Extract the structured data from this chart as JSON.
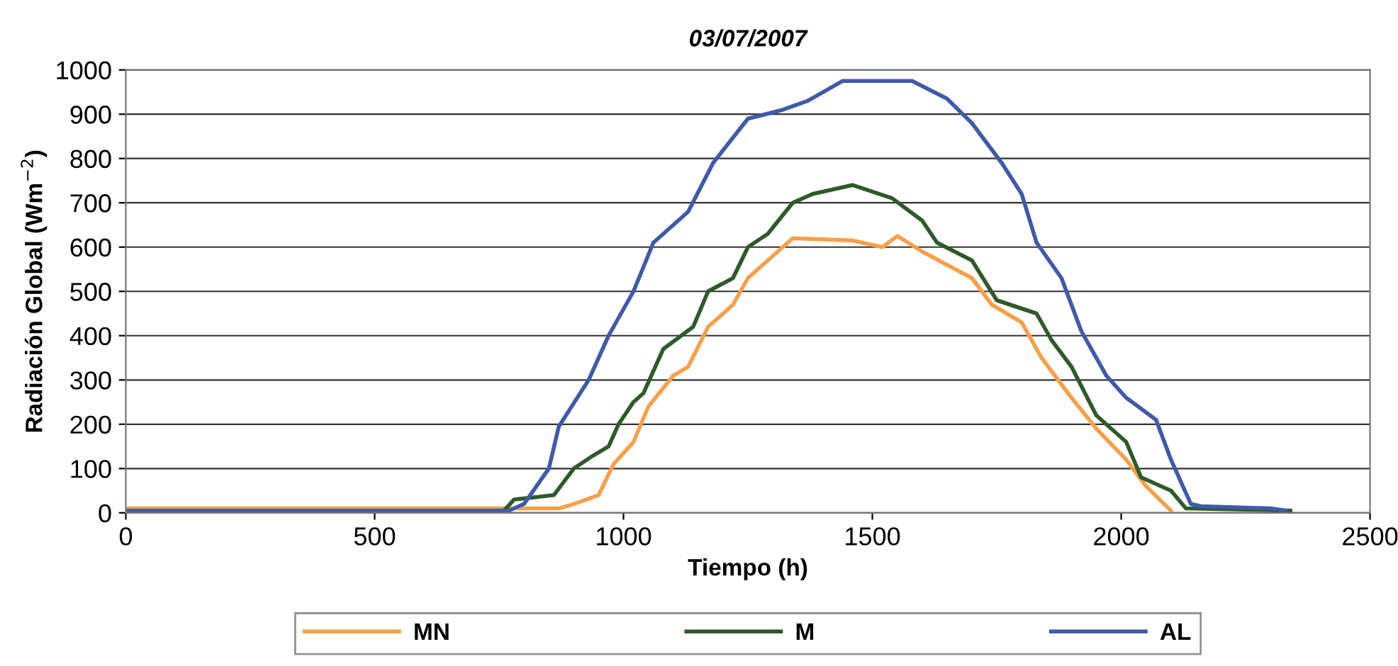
{
  "chart_data": {
    "type": "line",
    "title": "03/07/2007",
    "xlabel": "Tiempo (h)",
    "ylabel": "Radiación Global (Wm$^{−2}$)",
    "xlim": [
      0,
      2500
    ],
    "xticks": [
      0,
      500,
      1000,
      1500,
      2000,
      2500
    ],
    "ylim": [
      0,
      1000
    ],
    "yticks": [
      0,
      100,
      200,
      300,
      400,
      500,
      600,
      700,
      800,
      900,
      1000
    ],
    "grid": "y",
    "legend": "bottom",
    "marker": "none",
    "line_style": "solid",
    "series": [
      {
        "name": "MN",
        "color": "#f7a04a",
        "x": [
          0,
          870,
          900,
          950,
          980,
          1020,
          1050,
          1100,
          1130,
          1170,
          1220,
          1250,
          1290,
          1340,
          1460,
          1520,
          1550,
          1600,
          1650,
          1700,
          1740,
          1800,
          1840,
          1900,
          1950,
          2010,
          2050,
          2100
        ],
        "values": [
          10,
          10,
          20,
          40,
          110,
          160,
          240,
          310,
          330,
          420,
          470,
          530,
          570,
          620,
          615,
          600,
          625,
          590,
          560,
          530,
          470,
          430,
          350,
          260,
          190,
          120,
          60,
          5
        ]
      },
      {
        "name": "M",
        "color": "#2e5a2a",
        "x": [
          0,
          760,
          780,
          820,
          860,
          900,
          940,
          970,
          990,
          1020,
          1040,
          1080,
          1140,
          1170,
          1220,
          1250,
          1290,
          1340,
          1380,
          1460,
          1540,
          1600,
          1630,
          1700,
          1750,
          1830,
          1860,
          1900,
          1950,
          2010,
          2040,
          2100,
          2130,
          2340
        ],
        "values": [
          5,
          5,
          30,
          35,
          40,
          100,
          130,
          150,
          200,
          250,
          270,
          370,
          420,
          500,
          530,
          600,
          630,
          700,
          720,
          740,
          710,
          660,
          610,
          570,
          480,
          450,
          390,
          330,
          220,
          160,
          80,
          50,
          10,
          5
        ]
      },
      {
        "name": "AL",
        "color": "#3f5aa8",
        "x": [
          0,
          770,
          800,
          850,
          870,
          930,
          970,
          1020,
          1060,
          1130,
          1180,
          1250,
          1320,
          1370,
          1440,
          1500,
          1580,
          1650,
          1700,
          1760,
          1800,
          1830,
          1880,
          1920,
          1970,
          2010,
          2070,
          2100,
          2140,
          2160,
          2300,
          2330
        ],
        "values": [
          5,
          5,
          20,
          100,
          195,
          300,
          400,
          500,
          610,
          680,
          790,
          890,
          910,
          930,
          975,
          975,
          975,
          935,
          880,
          790,
          720,
          610,
          530,
          410,
          310,
          260,
          210,
          120,
          20,
          15,
          10,
          5
        ]
      }
    ]
  }
}
